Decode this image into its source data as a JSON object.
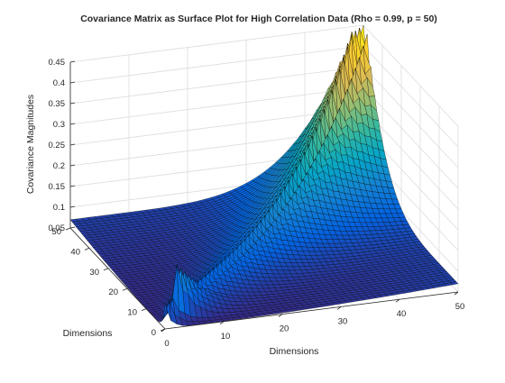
{
  "chart_data": {
    "type": "surface",
    "title": "Covariance Matrix as Surface Plot for High Correlation Data (Rho = 0.99, p = 50)",
    "xlabel": "Dimensions",
    "ylabel": "Dimensions",
    "zlabel": "Covariance Magnitudes",
    "xlim": [
      0,
      50
    ],
    "ylim": [
      0,
      50
    ],
    "zlim": [
      0.05,
      0.45
    ],
    "xticks": [
      "0",
      "10",
      "20",
      "30",
      "40",
      "50"
    ],
    "yticks": [
      "0",
      "10",
      "20",
      "30",
      "40",
      "50"
    ],
    "zticks": [
      "0.05",
      "0.1",
      "0.15",
      "0.2",
      "0.25",
      "0.3",
      "0.35",
      "0.4",
      "0.45"
    ],
    "grid": true,
    "colormap": "parula",
    "colors": {
      "parula_stops": [
        "#352a87",
        "#0363e1",
        "#1485d4",
        "#06a7c6",
        "#38b99e",
        "#92bf73",
        "#d9ba56",
        "#fcce2e",
        "#f9fb0e"
      ],
      "edge": "#000000",
      "axes": "#262626",
      "grid": "#dcdcdc"
    },
    "surface": {
      "rows": 50,
      "cols": 50,
      "description_values": {
        "min_covariance": 0.05,
        "max_covariance_peak": 0.45,
        "diagonal_peak_near_origin": 0.18
      }
    }
  }
}
